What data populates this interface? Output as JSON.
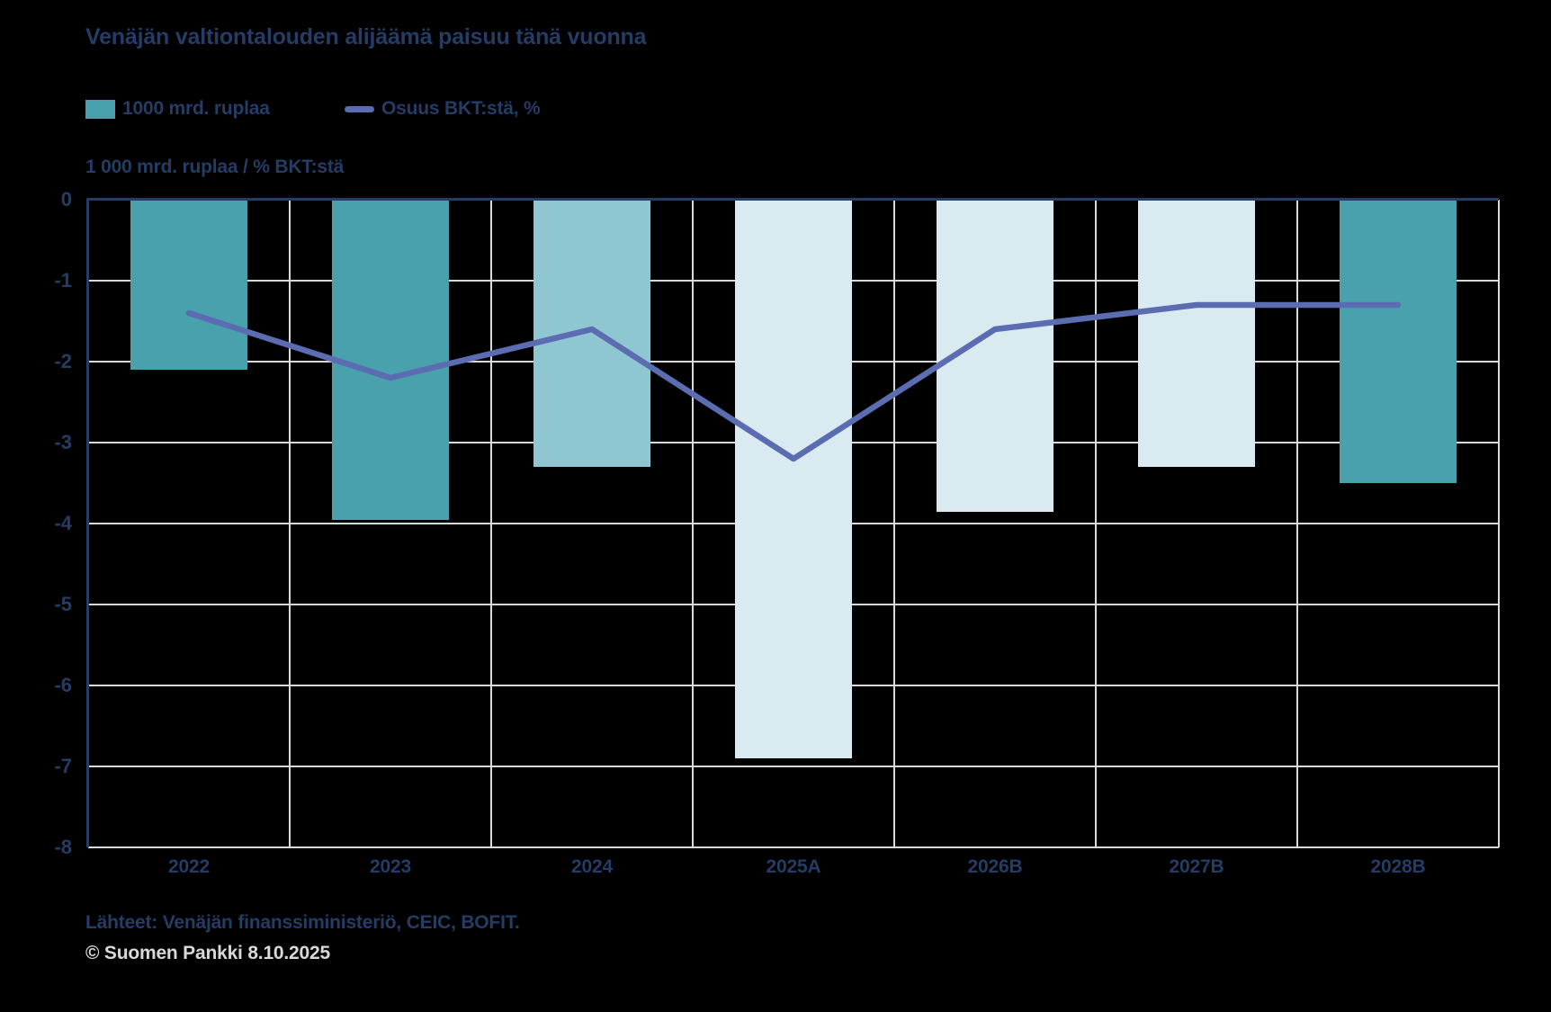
{
  "title": "Venäjän valtiontalouden alijäämä paisuu tänä vuonna",
  "legend": {
    "bars_label": "1000 mrd. ruplaa",
    "line_label": "Osuus BKT:stä, %"
  },
  "axis_title": "1 000 mrd. ruplaa / % BKT:stä",
  "footer": {
    "sources": "Lähteet: Venäjän finanssiministeriö, CEIC, BOFIT.",
    "copyright": "© Suomen Pankki 8.10.2025"
  },
  "colors": {
    "background": "#000000",
    "text_navy": "#253c64",
    "axis_navy": "#253c64",
    "grid_gray": "#d9d9d9",
    "bar_teal": "#49a1ad",
    "bar_light_teal": "#8ec6d2",
    "bar_pale": "#d9eaf0",
    "line_blue": "#5b6cb0",
    "copyright_gray": "#d9d9d9"
  },
  "chart_data": {
    "type": "bar+line",
    "title": "Venäjän valtiontalouden alijäämä paisuu tänä vuonna",
    "ylabel": "1 000 mrd. ruplaa / % BKT:stä",
    "xlabel": "",
    "ylim": [
      -8,
      0
    ],
    "yticks": [
      0,
      -1,
      -2,
      -3,
      -4,
      -5,
      -6,
      -7,
      -8
    ],
    "grid": true,
    "legend_position": "top",
    "categories": [
      "2022",
      "2023",
      "2024",
      "2025A",
      "2026B",
      "2027B",
      "2028B"
    ],
    "series": [
      {
        "name": "1000 mrd. ruplaa",
        "type": "bar",
        "values": [
          -2.1,
          -3.95,
          -3.3,
          -6.9,
          -3.85,
          -3.3,
          -3.5
        ],
        "bar_colors": [
          "#49a1ad",
          "#49a1ad",
          "#8ec6d2",
          "#d9eaf0",
          "#d9eaf0",
          "#d9eaf0",
          "#49a1ad"
        ]
      },
      {
        "name": "Osuus BKT:stä, %",
        "type": "line",
        "values": [
          -1.4,
          -2.2,
          -1.6,
          -3.2,
          -1.6,
          -1.3,
          -1.3
        ],
        "color": "#5b6cb0"
      }
    ]
  }
}
